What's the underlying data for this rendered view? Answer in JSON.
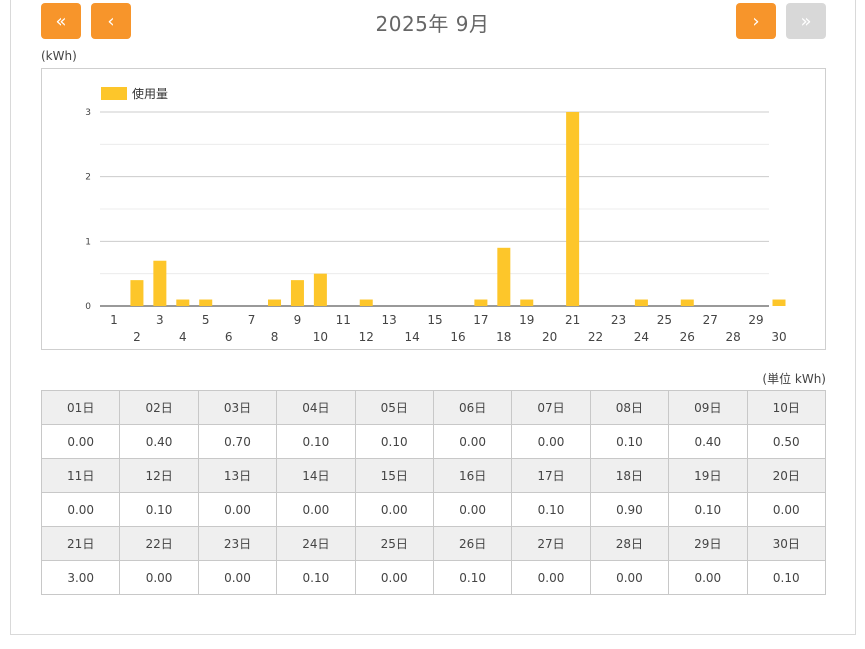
{
  "header": {
    "month_label": "2025年 9月",
    "first_label": "«",
    "prev_label": "‹",
    "next_label": "›",
    "last_label": "»",
    "last_disabled": true
  },
  "unit_top": "(kWh)",
  "unit_table": "(単位 kWh)",
  "colors": {
    "accent": "#f7952b",
    "bar": "#fdc62a",
    "disabled": "#d8d8d8"
  },
  "chart_data": {
    "type": "bar",
    "categories": [
      "1",
      "2",
      "3",
      "4",
      "5",
      "6",
      "7",
      "8",
      "9",
      "10",
      "11",
      "12",
      "13",
      "14",
      "15",
      "16",
      "17",
      "18",
      "19",
      "20",
      "21",
      "22",
      "23",
      "24",
      "25",
      "26",
      "27",
      "28",
      "29",
      "30"
    ],
    "series": [
      {
        "name": "使用量",
        "values": [
          0.0,
          0.4,
          0.7,
          0.1,
          0.1,
          0.0,
          0.0,
          0.1,
          0.4,
          0.5,
          0.0,
          0.1,
          0.0,
          0.0,
          0.0,
          0.0,
          0.1,
          0.9,
          0.1,
          0.0,
          3.0,
          0.0,
          0.0,
          0.1,
          0.0,
          0.1,
          0.0,
          0.0,
          0.0,
          0.1
        ]
      }
    ],
    "yticks": [
      "0",
      "1",
      "2",
      "3"
    ],
    "ylim": [
      0,
      3
    ],
    "legend": "top-left",
    "grid": true
  },
  "table": {
    "rows": [
      {
        "days": [
          "01日",
          "02日",
          "03日",
          "04日",
          "05日",
          "06日",
          "07日",
          "08日",
          "09日",
          "10日"
        ],
        "values": [
          "0.00",
          "0.40",
          "0.70",
          "0.10",
          "0.10",
          "0.00",
          "0.00",
          "0.10",
          "0.40",
          "0.50"
        ]
      },
      {
        "days": [
          "11日",
          "12日",
          "13日",
          "14日",
          "15日",
          "16日",
          "17日",
          "18日",
          "19日",
          "20日"
        ],
        "values": [
          "0.00",
          "0.10",
          "0.00",
          "0.00",
          "0.00",
          "0.00",
          "0.10",
          "0.90",
          "0.10",
          "0.00"
        ]
      },
      {
        "days": [
          "21日",
          "22日",
          "23日",
          "24日",
          "25日",
          "26日",
          "27日",
          "28日",
          "29日",
          "30日"
        ],
        "values": [
          "3.00",
          "0.00",
          "0.00",
          "0.10",
          "0.00",
          "0.10",
          "0.00",
          "0.00",
          "0.00",
          "0.10"
        ]
      }
    ]
  }
}
